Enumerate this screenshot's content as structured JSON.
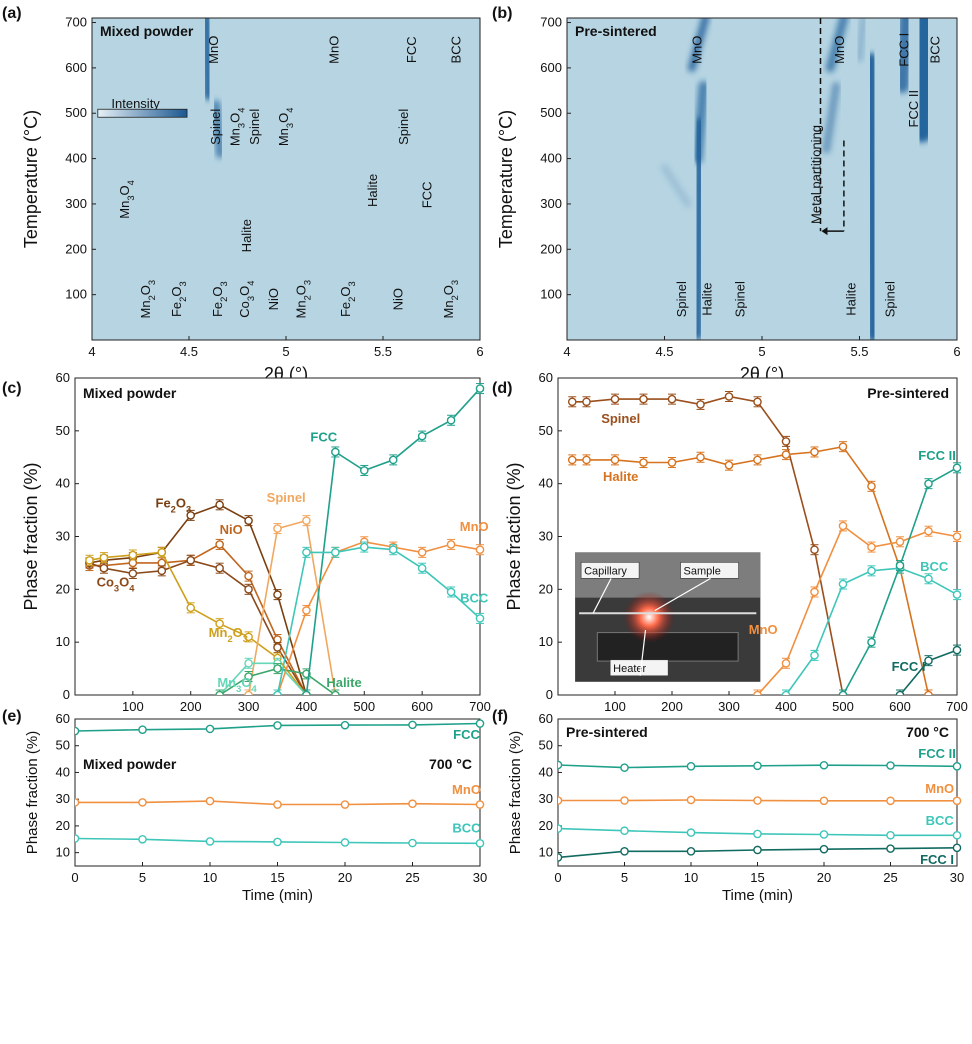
{
  "colors": {
    "Fe2O3": "#7a3f10",
    "NiO": "#c0661e",
    "Co3O4": "#8a4a1a",
    "Mn2O3": "#cfa01c",
    "Spinel": "#f0a860",
    "Mn3O4": "#66d6b8",
    "Halite": "#3aa66a",
    "FCC": "#1fa08a",
    "MnO": "#f09040",
    "BCC": "#3ec6b9",
    "SpinelB": "#9a4f1c",
    "HaliteB": "#d6731f",
    "FCCII": "#1fa08a",
    "FCCI": "#126b60",
    "heat_bg": "#b6d4e2",
    "heat_band": "#1f5f9a"
  },
  "chart_data": [
    {
      "panel": "(a)",
      "type": "heatmap",
      "inset_label": "Mixed powder",
      "xlabel": "2θ (°)",
      "ylabel": "Temperature (°C)",
      "xlim": [
        4,
        6
      ],
      "ylim": [
        0,
        710
      ],
      "xticks": [
        "4",
        "4.5",
        "5",
        "5.5",
        "6"
      ],
      "yticks": [
        "100",
        "200",
        "300",
        "400",
        "500",
        "600",
        "700"
      ],
      "colorbar_label": "Intensity",
      "annotations": [
        {
          "text": "MnO",
          "x": 4.65,
          "y": 640,
          "rot": true
        },
        {
          "text": "MnO",
          "x": 5.27,
          "y": 640,
          "rot": true
        },
        {
          "text": "FCC",
          "x": 5.67,
          "y": 640,
          "rot": true
        },
        {
          "text": "BCC",
          "x": 5.9,
          "y": 640,
          "rot": true
        },
        {
          "text": "Spinel",
          "x": 4.66,
          "y": 470,
          "rot": true
        },
        {
          "text": "Mn3O4",
          "x": 4.76,
          "y": 470,
          "rot": true
        },
        {
          "text": "Spinel",
          "x": 4.86,
          "y": 470,
          "rot": true
        },
        {
          "text": "Mn3O4",
          "x": 5.01,
          "y": 470,
          "rot": true
        },
        {
          "text": "Spinel",
          "x": 5.63,
          "y": 470,
          "rot": true
        },
        {
          "text": "Mn3O4",
          "x": 4.19,
          "y": 310,
          "rot": true
        },
        {
          "text": "Halite",
          "x": 4.82,
          "y": 230,
          "rot": true
        },
        {
          "text": "Halite",
          "x": 5.47,
          "y": 330,
          "rot": true
        },
        {
          "text": "FCC",
          "x": 5.75,
          "y": 320,
          "rot": true
        },
        {
          "text": "Mn2O3",
          "x": 4.3,
          "y": 90,
          "rot": true
        },
        {
          "text": "Fe2O3",
          "x": 4.46,
          "y": 90,
          "rot": true
        },
        {
          "text": "Fe2O3",
          "x": 4.67,
          "y": 90,
          "rot": true
        },
        {
          "text": "Co3O4",
          "x": 4.81,
          "y": 90,
          "rot": true
        },
        {
          "text": "NiO",
          "x": 4.96,
          "y": 90,
          "rot": true
        },
        {
          "text": "Mn2O3",
          "x": 5.1,
          "y": 90,
          "rot": true
        },
        {
          "text": "Fe2O3",
          "x": 5.33,
          "y": 90,
          "rot": true
        },
        {
          "text": "NiO",
          "x": 5.6,
          "y": 90,
          "rot": true
        },
        {
          "text": "Mn2O3",
          "x": 5.86,
          "y": 90,
          "rot": true
        }
      ]
    },
    {
      "panel": "(b)",
      "type": "heatmap",
      "inset_label": "Pre-sintered",
      "xlabel": "2θ (°)",
      "ylabel": "Temperature (°C)",
      "xlim": [
        4,
        6
      ],
      "ylim": [
        0,
        710
      ],
      "xticks": [
        "4",
        "4.5",
        "5",
        "5.5",
        "6"
      ],
      "yticks": [
        "100",
        "200",
        "300",
        "400",
        "500",
        "600",
        "700"
      ],
      "annotations": [
        {
          "text": "MnO",
          "x": 4.69,
          "y": 640,
          "rot": true
        },
        {
          "text": "MnO",
          "x": 5.42,
          "y": 640,
          "rot": true
        },
        {
          "text": "FCC I",
          "x": 5.75,
          "y": 640,
          "rot": true
        },
        {
          "text": "BCC",
          "x": 5.91,
          "y": 640,
          "rot": true
        },
        {
          "text": "FCC II",
          "x": 5.8,
          "y": 510,
          "rot": true
        },
        {
          "text": "Metal partitioning",
          "x": 5.3,
          "y": 365,
          "rot": true
        },
        {
          "text": "Spinel",
          "x": 4.61,
          "y": 90,
          "rot": true
        },
        {
          "text": "Halite",
          "x": 4.74,
          "y": 90,
          "rot": true
        },
        {
          "text": "Spinel",
          "x": 4.91,
          "y": 90,
          "rot": true
        },
        {
          "text": "Halite",
          "x": 5.48,
          "y": 90,
          "rot": true
        },
        {
          "text": "Spinel",
          "x": 5.68,
          "y": 90,
          "rot": true
        }
      ]
    },
    {
      "panel": "(c)",
      "type": "line",
      "inset_label": "Mixed powder",
      "xlabel": "Temperature (°C)",
      "ylabel": "Phase fraction (%)",
      "xlim": [
        0,
        700
      ],
      "ylim": [
        0,
        60
      ],
      "xticks": [
        "100",
        "200",
        "300",
        "400",
        "500",
        "600",
        "700"
      ],
      "yticks": [
        "0",
        "10",
        "20",
        "30",
        "40",
        "50",
        "60"
      ],
      "series": [
        {
          "name": "Fe2O3",
          "color": "Fe2O3",
          "x": [
            25,
            50,
            100,
            150,
            200,
            250,
            300,
            350,
            400
          ],
          "y": [
            25,
            25.5,
            26,
            27,
            34,
            36,
            33,
            19,
            0
          ]
        },
        {
          "name": "NiO",
          "color": "NiO",
          "x": [
            25,
            50,
            100,
            150,
            200,
            250,
            300,
            350,
            400
          ],
          "y": [
            24.5,
            24.5,
            25,
            25,
            25.5,
            28.5,
            22.5,
            10.5,
            0
          ]
        },
        {
          "name": "Co3O4",
          "color": "Co3O4",
          "x": [
            25,
            50,
            100,
            150,
            200,
            250,
            300,
            350,
            400
          ],
          "y": [
            25,
            24,
            23,
            23.5,
            25.5,
            24,
            20,
            9,
            0
          ]
        },
        {
          "name": "Mn2O3",
          "color": "Mn2O3",
          "x": [
            25,
            50,
            100,
            150,
            200,
            250,
            300,
            350,
            400
          ],
          "y": [
            25.5,
            26,
            26.5,
            27,
            16.5,
            13.5,
            11,
            7,
            0
          ]
        },
        {
          "name": "Spinel",
          "color": "Spinel",
          "x": [
            300,
            350,
            400,
            450
          ],
          "y": [
            0,
            31.5,
            33,
            0
          ]
        },
        {
          "name": "Mn3O4",
          "color": "Mn3O4",
          "x": [
            250,
            300,
            350,
            400
          ],
          "y": [
            0,
            6,
            6,
            0
          ]
        },
        {
          "name": "Halite",
          "color": "Halite",
          "x": [
            250,
            300,
            350,
            400,
            450
          ],
          "y": [
            0,
            3.5,
            5,
            4,
            0
          ]
        },
        {
          "name": "FCC",
          "color": "FCC",
          "x": [
            400,
            450,
            500,
            550,
            600,
            650,
            700
          ],
          "y": [
            0,
            46,
            42.5,
            44.5,
            49,
            52,
            58
          ]
        },
        {
          "name": "MnO",
          "color": "MnO",
          "x": [
            350,
            400,
            450,
            500,
            550,
            600,
            650,
            700
          ],
          "y": [
            0,
            16,
            27,
            29,
            28,
            27,
            28.5,
            27.5
          ]
        },
        {
          "name": "BCC",
          "color": "BCC",
          "x": [
            350,
            400,
            450,
            500,
            550,
            600,
            650,
            700
          ],
          "y": [
            0,
            27,
            27,
            28,
            27.5,
            24,
            19.5,
            14.5
          ]
        }
      ],
      "labels": [
        {
          "text": "Fe2O3",
          "x": 170,
          "y": 35.5,
          "color": "Fe2O3"
        },
        {
          "text": "NiO",
          "x": 270,
          "y": 30.5,
          "color": "NiO"
        },
        {
          "text": "Co3O4",
          "x": 70,
          "y": 20.5,
          "color": "Co3O4"
        },
        {
          "text": "Mn2O3",
          "x": 265,
          "y": 11,
          "color": "Mn2O3"
        },
        {
          "text": "Spinel",
          "x": 365,
          "y": 36.5,
          "color": "Spinel"
        },
        {
          "text": "Mn3O4",
          "x": 280,
          "y": 1.5,
          "color": "Mn3O4"
        },
        {
          "text": "Halite",
          "x": 465,
          "y": 1.5,
          "color": "Halite"
        },
        {
          "text": "FCC",
          "x": 430,
          "y": 48,
          "color": "FCC"
        },
        {
          "text": "MnO",
          "x": 690,
          "y": 31,
          "color": "MnO"
        },
        {
          "text": "BCC",
          "x": 690,
          "y": 17.5,
          "color": "BCC"
        }
      ]
    },
    {
      "panel": "(d)",
      "type": "line",
      "inset_label": "Pre-sintered",
      "xlabel": "Temperature (°C)",
      "ylabel": "Phase fraction (%)",
      "xlim": [
        0,
        700
      ],
      "ylim": [
        0,
        60
      ],
      "xticks": [
        "100",
        "200",
        "300",
        "400",
        "500",
        "600",
        "700"
      ],
      "yticks": [
        "0",
        "10",
        "20",
        "30",
        "40",
        "50",
        "60"
      ],
      "inset_photo_labels": [
        "Capillary",
        "Sample",
        "Heater"
      ],
      "series": [
        {
          "name": "Spinel",
          "color": "SpinelB",
          "x": [
            25,
            50,
            100,
            150,
            200,
            250,
            300,
            350,
            400,
            450,
            500
          ],
          "y": [
            55.5,
            55.5,
            56,
            56,
            56,
            55,
            56.5,
            55.5,
            48,
            27.5,
            0
          ]
        },
        {
          "name": "Halite",
          "color": "HaliteB",
          "x": [
            25,
            50,
            100,
            150,
            200,
            250,
            300,
            350,
            400,
            450,
            500,
            550,
            600,
            650
          ],
          "y": [
            44.5,
            44.5,
            44.5,
            44,
            44,
            45,
            43.5,
            44.5,
            45.5,
            46,
            47,
            39.5,
            24,
            0
          ]
        },
        {
          "name": "MnO",
          "color": "MnO",
          "x": [
            350,
            400,
            450,
            500,
            550,
            600,
            650,
            700
          ],
          "y": [
            0,
            6,
            19.5,
            32,
            28,
            29,
            31,
            30
          ]
        },
        {
          "name": "BCC",
          "color": "BCC",
          "x": [
            400,
            450,
            500,
            550,
            600,
            650,
            700
          ],
          "y": [
            0,
            7.5,
            21,
            23.5,
            24,
            22,
            19
          ]
        },
        {
          "name": "FCC II",
          "color": "FCCII",
          "x": [
            500,
            550,
            600,
            650,
            700
          ],
          "y": [
            0,
            10,
            24.5,
            40,
            43
          ]
        },
        {
          "name": "FCC I",
          "color": "FCCI",
          "x": [
            600,
            650,
            700
          ],
          "y": [
            0,
            6.5,
            8.5
          ]
        }
      ],
      "labels": [
        {
          "text": "Spinel",
          "x": 110,
          "y": 51.5,
          "color": "SpinelB"
        },
        {
          "text": "Halite",
          "x": 110,
          "y": 40.5,
          "color": "HaliteB"
        },
        {
          "text": "MnO",
          "x": 360,
          "y": 11.5,
          "color": "MnO"
        },
        {
          "text": "BCC",
          "x": 660,
          "y": 23.5,
          "color": "BCC"
        },
        {
          "text": "FCC II",
          "x": 665,
          "y": 44.5,
          "color": "FCCII"
        },
        {
          "text": "FCC I",
          "x": 615,
          "y": 4.5,
          "color": "FCCI"
        }
      ]
    },
    {
      "panel": "(e)",
      "type": "line",
      "inset_label": "Mixed powder",
      "temp_label": "700 °C",
      "xlabel": "Time (min)",
      "ylabel": "Phase fraction (%)",
      "xlim": [
        0,
        30
      ],
      "ylim": [
        5,
        60
      ],
      "xticks": [
        "0",
        "5",
        "10",
        "15",
        "20",
        "25",
        "30"
      ],
      "yticks": [
        "10",
        "20",
        "30",
        "40",
        "50",
        "60"
      ],
      "series": [
        {
          "name": "FCC",
          "color": "FCC",
          "x": [
            0,
            5,
            10,
            15,
            20,
            25,
            30
          ],
          "y": [
            55.5,
            56,
            56.3,
            57.6,
            57.7,
            57.8,
            58.3
          ]
        },
        {
          "name": "MnO",
          "color": "MnO",
          "x": [
            0,
            5,
            10,
            15,
            20,
            25,
            30
          ],
          "y": [
            28.8,
            28.8,
            29.3,
            28,
            28,
            28.3,
            28
          ]
        },
        {
          "name": "BCC",
          "color": "BCC",
          "x": [
            0,
            5,
            10,
            15,
            20,
            25,
            30
          ],
          "y": [
            15.3,
            15,
            14.2,
            14,
            13.8,
            13.6,
            13.5
          ]
        }
      ],
      "labels": [
        {
          "text": "FCC",
          "x": 29,
          "y": 52.5,
          "color": "FCC"
        },
        {
          "text": "MnO",
          "x": 29,
          "y": 32,
          "color": "MnO"
        },
        {
          "text": "BCC",
          "x": 29,
          "y": 17.5,
          "color": "BCC"
        }
      ]
    },
    {
      "panel": "(f)",
      "type": "line",
      "inset_label": "Pre-sintered",
      "temp_label": "700 °C",
      "xlabel": "Time (min)",
      "ylabel": "Phase fraction (%)",
      "xlim": [
        0,
        30
      ],
      "ylim": [
        5,
        60
      ],
      "xticks": [
        "0",
        "5",
        "10",
        "15",
        "20",
        "25",
        "30"
      ],
      "yticks": [
        "10",
        "20",
        "30",
        "40",
        "50",
        "60"
      ],
      "series": [
        {
          "name": "FCC II",
          "color": "FCCII",
          "x": [
            0,
            5,
            10,
            15,
            20,
            25,
            30
          ],
          "y": [
            42.8,
            41.8,
            42.3,
            42.5,
            42.7,
            42.6,
            42.3
          ]
        },
        {
          "name": "MnO",
          "color": "MnO",
          "x": [
            0,
            5,
            10,
            15,
            20,
            25,
            30
          ],
          "y": [
            29.5,
            29.5,
            29.7,
            29.5,
            29.4,
            29.4,
            29.4
          ]
        },
        {
          "name": "BCC",
          "color": "BCC",
          "x": [
            0,
            5,
            10,
            15,
            20,
            25,
            30
          ],
          "y": [
            19,
            18.2,
            17.5,
            17,
            16.8,
            16.5,
            16.5
          ]
        },
        {
          "name": "FCC I",
          "color": "FCCI",
          "x": [
            0,
            5,
            10,
            15,
            20,
            25,
            30
          ],
          "y": [
            8.2,
            10.5,
            10.5,
            11,
            11.3,
            11.5,
            11.8
          ]
        }
      ],
      "labels": [
        {
          "text": "FCC II",
          "x": 28.5,
          "y": 45.5,
          "color": "FCCII"
        },
        {
          "text": "MnO",
          "x": 28.7,
          "y": 32.3,
          "color": "MnO"
        },
        {
          "text": "BCC",
          "x": 28.7,
          "y": 20.3,
          "color": "BCC"
        },
        {
          "text": "FCC I",
          "x": 28.5,
          "y": 5.8,
          "color": "FCCI"
        }
      ]
    }
  ]
}
